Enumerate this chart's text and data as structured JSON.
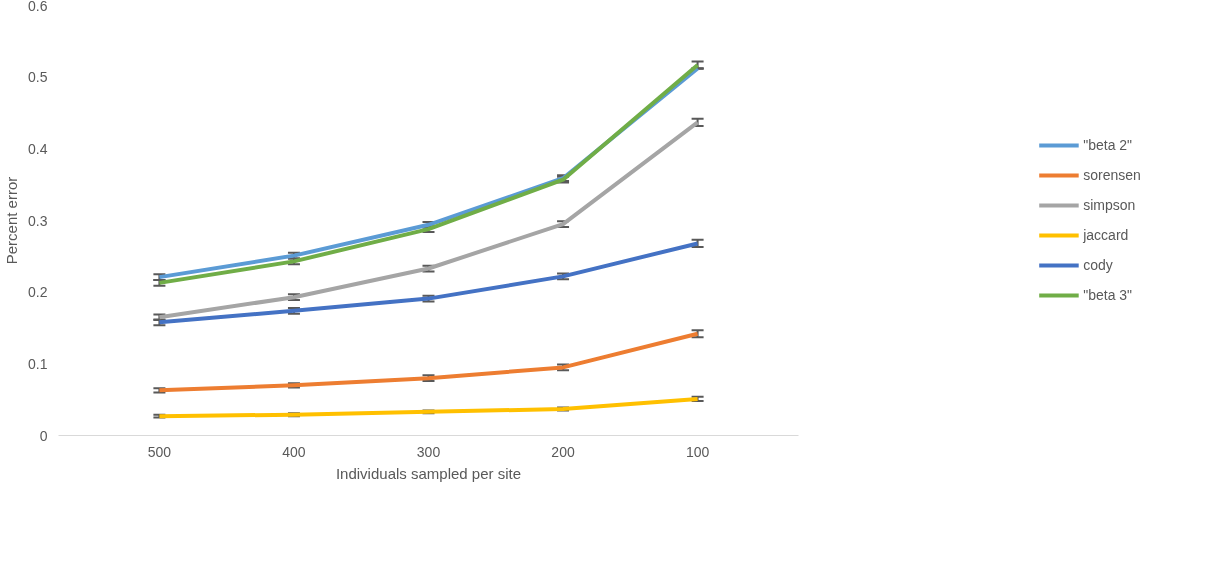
{
  "chart_data": {
    "type": "line",
    "xlabel": "Individuals sampled per site",
    "ylabel": "Percent error",
    "categories": [
      "500",
      "400",
      "300",
      "200",
      "100"
    ],
    "ylim": [
      0,
      0.6
    ],
    "yticks": [
      {
        "value": 0,
        "label": "0"
      },
      0.1,
      0.2,
      0.3,
      0.4,
      0.5,
      0.6
    ],
    "grid": false,
    "legend": "right",
    "marker": "none",
    "line_style": "solid",
    "series": [
      {
        "name": "\"beta 2\"",
        "color": "#5b9bd5",
        "values": [
          0.221,
          0.251,
          0.294,
          0.359,
          0.512
        ],
        "errors": [
          0.004,
          0.004,
          0.004,
          0.004,
          null
        ]
      },
      {
        "name": "sorensen",
        "color": "#ed7d31",
        "values": [
          0.063,
          0.07,
          0.08,
          0.095,
          0.142
        ],
        "errors": [
          0.003,
          0.003,
          0.004,
          0.004,
          0.005
        ]
      },
      {
        "name": "simpson",
        "color": "#a5a5a5",
        "values": [
          0.165,
          0.193,
          0.233,
          0.295,
          0.437
        ],
        "errors": [
          0.004,
          0.004,
          0.004,
          0.004,
          0.005
        ]
      },
      {
        "name": "jaccard",
        "color": "#ffc000",
        "values": [
          0.027,
          0.029,
          0.033,
          0.037,
          0.051
        ],
        "errors": [
          0.002,
          0.002,
          0.002,
          0.002,
          0.003
        ]
      },
      {
        "name": "cody",
        "color": "#4472c4",
        "values": [
          0.158,
          0.174,
          0.191,
          0.222,
          0.268
        ],
        "errors": [
          0.004,
          0.004,
          0.004,
          0.004,
          0.005
        ]
      },
      {
        "name": "\"beta 3\"",
        "color": "#70ad47",
        "values": [
          0.213,
          0.243,
          0.288,
          0.357,
          0.517
        ],
        "errors": [
          0.004,
          0.004,
          0.004,
          0.004,
          0.005
        ]
      }
    ]
  }
}
